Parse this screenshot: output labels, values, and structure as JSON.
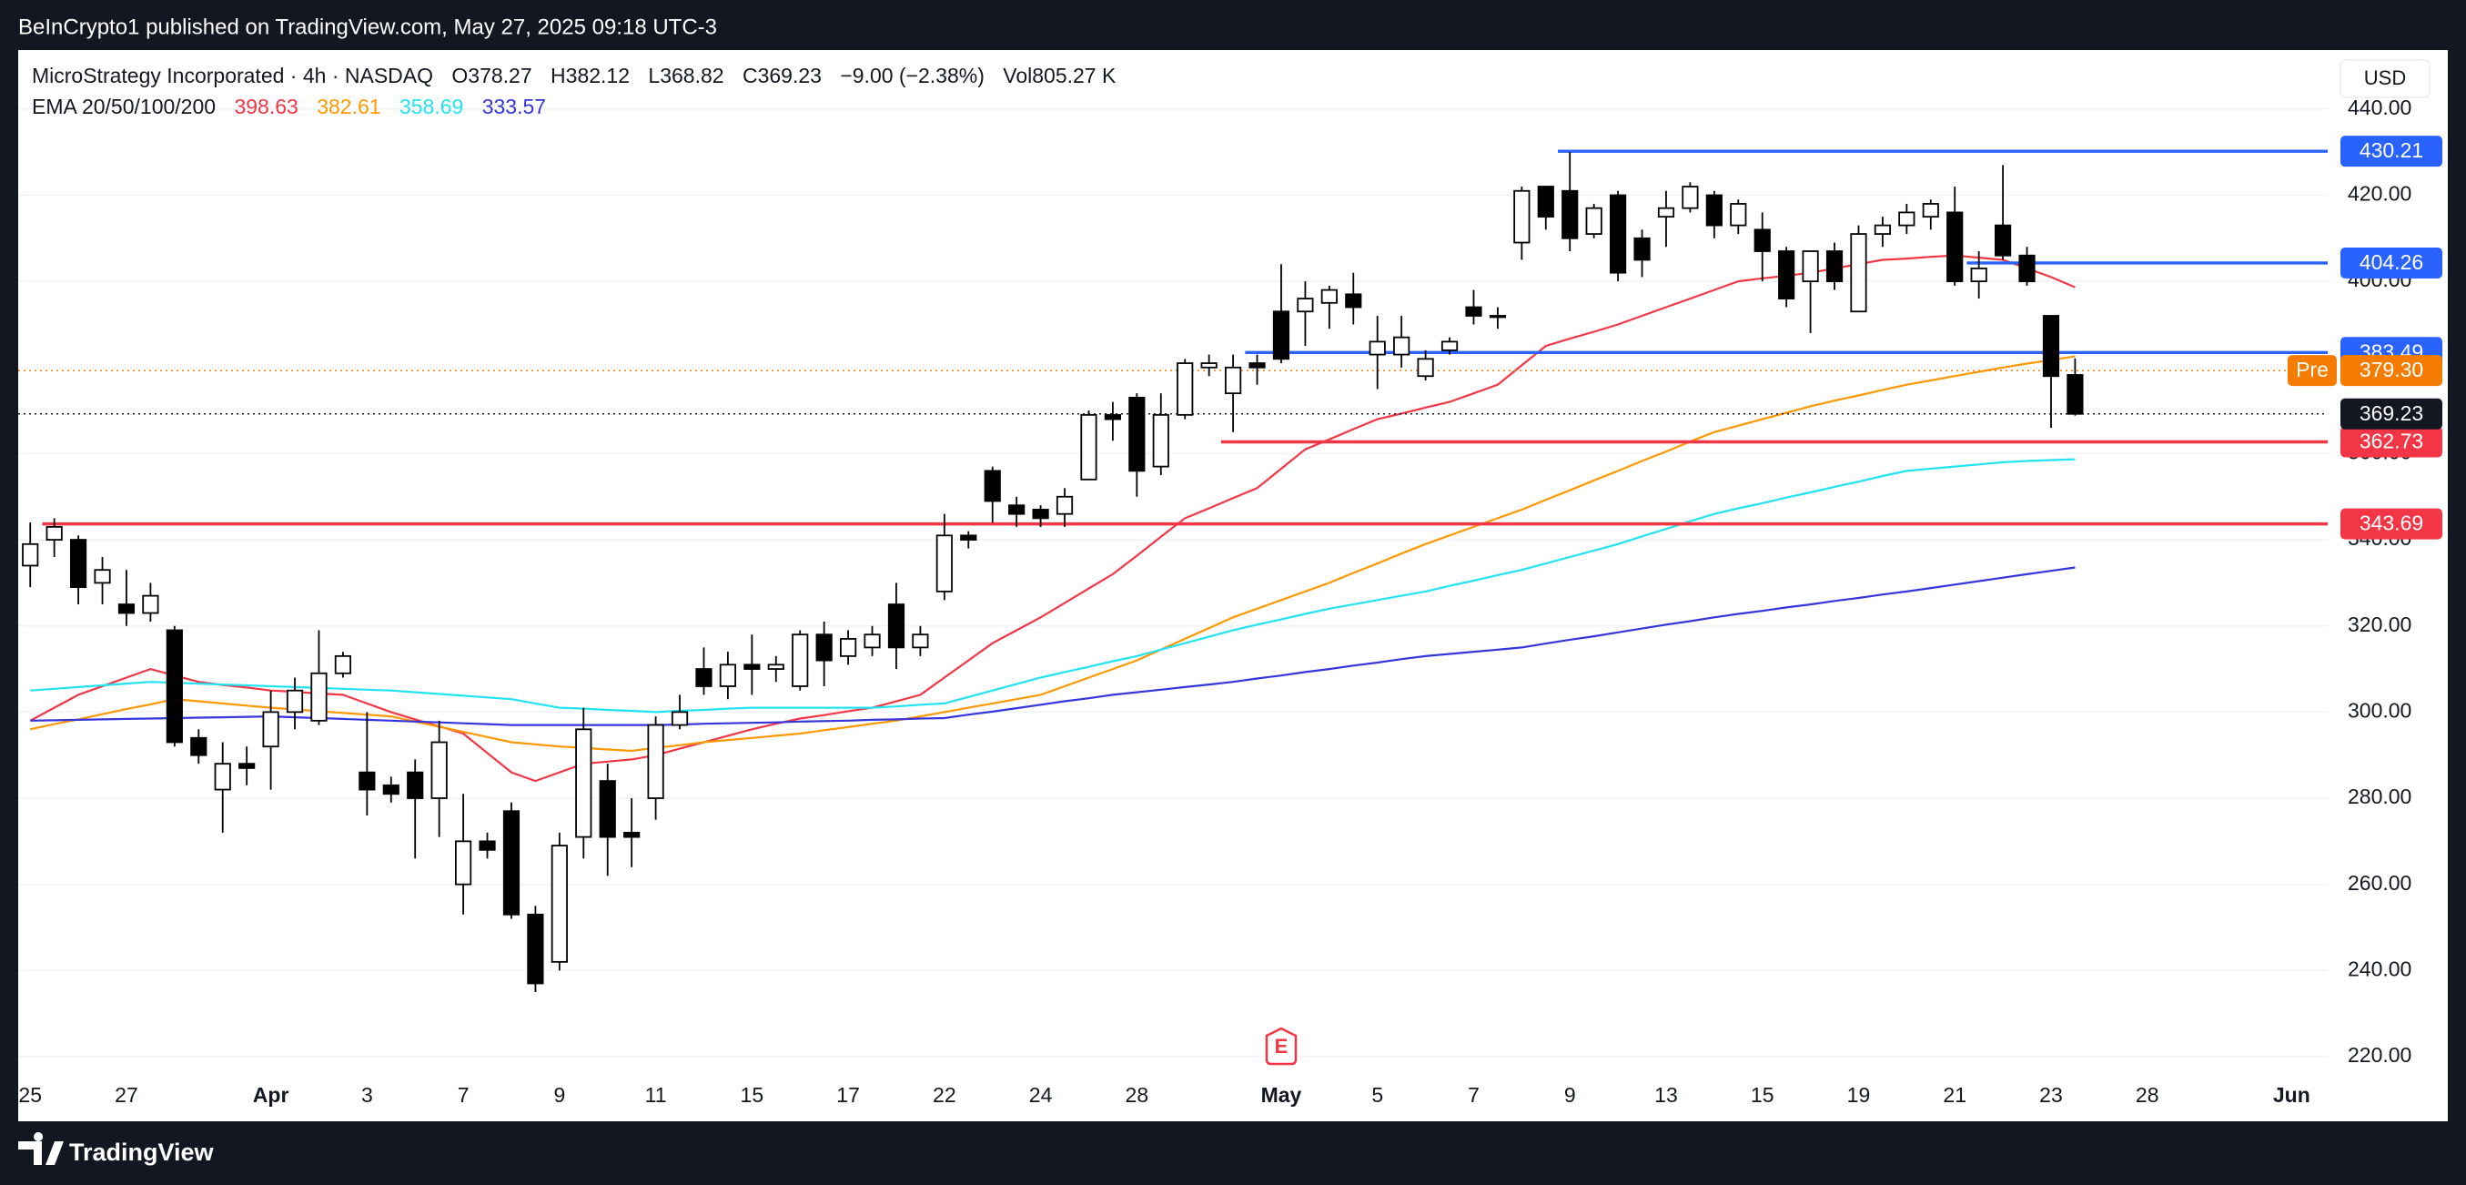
{
  "header": {
    "publisher": "BeInCrypto1 published on TradingView.com, May 27, 2025 09:18 UTC-3"
  },
  "footer": {
    "brand": "TradingView"
  },
  "chart_data": {
    "type": "candlestick",
    "title": "MicroStrategy Incorporated · 4h · NASDAQ",
    "ohlc_labels": [
      "O",
      "H",
      "L",
      "C"
    ],
    "change": "−9.00 (−2.38%)",
    "volume": "Vol805.27 K",
    "currency": "USD",
    "categories": [
      "25",
      null,
      null,
      null,
      "27",
      null,
      null,
      null,
      null,
      null,
      "Apr",
      null,
      null,
      null,
      "3",
      null,
      null,
      null,
      "7",
      null,
      null,
      null,
      "9",
      null,
      null,
      null,
      "11",
      null,
      null,
      null,
      "15",
      null,
      null,
      null,
      "17",
      null,
      null,
      null,
      "22",
      null,
      null,
      null,
      "24",
      null,
      null,
      null,
      "28",
      null,
      null,
      null,
      null,
      null,
      "May",
      null,
      null,
      null,
      "5",
      null,
      null,
      null,
      "7",
      null,
      null,
      null,
      "9",
      null,
      null,
      null,
      "13",
      null,
      null,
      null,
      "15",
      null,
      null,
      null,
      "19",
      null,
      null,
      null,
      "21",
      null,
      null,
      null,
      "23",
      null,
      null,
      null,
      "28",
      null,
      null,
      null,
      null,
      null,
      "Jun",
      null
    ],
    "candles": {
      "up_color": "#ffffff",
      "down_color": "#000000",
      "open": [
        334,
        340,
        340,
        330,
        325,
        323,
        319,
        294,
        282,
        288,
        292,
        300,
        298,
        309,
        286,
        283,
        286,
        280,
        260,
        270,
        277,
        253,
        242,
        271,
        284,
        272,
        280,
        297,
        310,
        306,
        311,
        310,
        306,
        318,
        313,
        315,
        325,
        315,
        328,
        341,
        356,
        348,
        347,
        346,
        354,
        369,
        373,
        357,
        369,
        380,
        374,
        381,
        393,
        393,
        395,
        397,
        383,
        383,
        378,
        384,
        394,
        392,
        409,
        422,
        421,
        411,
        420,
        410,
        415,
        417,
        420,
        413,
        412,
        407,
        400,
        407,
        393,
        411,
        413,
        415,
        416,
        400,
        413,
        406,
        392,
        378.27,
        null,
        null,
        null,
        null,
        null,
        null,
        null,
        null,
        null,
        null
      ],
      "high": [
        344,
        345,
        341,
        336,
        333,
        330,
        320,
        296,
        293,
        292,
        305,
        308,
        319,
        314,
        300,
        285,
        289,
        298,
        281,
        272,
        279,
        255,
        272,
        301,
        288,
        280,
        299,
        304,
        315,
        314,
        318,
        313,
        319,
        321,
        319,
        320,
        330,
        320,
        346,
        342,
        357,
        350,
        348,
        352,
        370,
        372,
        374,
        374,
        382,
        383,
        383,
        383,
        404,
        400,
        399,
        402,
        392,
        392,
        384,
        387,
        398,
        394,
        422,
        422,
        430,
        418,
        421,
        412,
        421,
        423,
        421,
        419,
        416,
        408,
        407,
        409,
        413,
        415,
        418,
        419,
        422,
        407,
        427,
        408,
        392,
        382.12,
        null,
        null,
        null,
        null,
        null,
        null,
        null,
        null,
        null,
        null
      ],
      "low": [
        329,
        336,
        325,
        325,
        320,
        321,
        292,
        288,
        272,
        283,
        282,
        296,
        297,
        308,
        276,
        279,
        266,
        271,
        253,
        266,
        252,
        235,
        240,
        266,
        262,
        264,
        275,
        296,
        304,
        303,
        304,
        307,
        305,
        306,
        311,
        313,
        310,
        313,
        326,
        338,
        344,
        343,
        343,
        343,
        354,
        363,
        350,
        355,
        368,
        378,
        365,
        376,
        381,
        385,
        389,
        390,
        375,
        380,
        377,
        383,
        390,
        389,
        405,
        412,
        407,
        410,
        400,
        401,
        408,
        416,
        410,
        411,
        400,
        394,
        388,
        398,
        393,
        408,
        411,
        412,
        399,
        396,
        405,
        399,
        366,
        368.82,
        null,
        null,
        null,
        null,
        null,
        null,
        null,
        null,
        null,
        null
      ],
      "close": [
        339,
        343,
        329,
        333,
        323,
        327,
        293,
        290,
        288,
        287,
        300,
        305,
        309,
        313,
        282,
        281,
        280,
        293,
        270,
        268,
        253,
        237,
        269,
        296,
        271,
        271,
        297,
        300,
        306,
        311,
        310,
        311,
        318,
        312,
        317,
        318,
        315,
        318,
        341,
        340,
        349,
        346,
        345,
        350,
        369,
        368,
        356,
        369,
        381,
        381,
        380,
        380,
        382,
        396,
        398,
        394,
        386,
        387,
        382,
        386,
        392,
        392,
        421,
        415,
        410,
        417,
        402,
        405,
        417,
        422,
        413,
        418,
        407,
        396,
        407,
        400,
        411,
        413,
        416,
        418,
        400,
        403,
        406,
        400,
        378,
        369.23,
        null,
        null,
        null,
        null,
        null,
        null,
        null,
        null,
        null,
        null
      ]
    },
    "ema": {
      "label": "EMA 20/50/100/200",
      "series": [
        {
          "color": "#f23645",
          "values": [
            298,
            301,
            304,
            306,
            308,
            310,
            308.5,
            307,
            306.3,
            305.7,
            305,
            304.7,
            304.3,
            304,
            302,
            300,
            298.3,
            296.7,
            295,
            290.5,
            286,
            284,
            286,
            288,
            288.5,
            289,
            290,
            291.5,
            293,
            294.5,
            296,
            297.3,
            298.5,
            299.3,
            300.2,
            301,
            302.5,
            304,
            308,
            312,
            316,
            319,
            322,
            325.3,
            328.7,
            332,
            336.3,
            340.7,
            345,
            347.3,
            349.7,
            352,
            356.5,
            361,
            363.3,
            365.7,
            368,
            369.3,
            370.7,
            372,
            374,
            376,
            380.5,
            385,
            386.7,
            388.3,
            390,
            392,
            394,
            396,
            398,
            400,
            400.7,
            401.3,
            402,
            403,
            404,
            405,
            405.3,
            405.7,
            406,
            405.5,
            405,
            403,
            401,
            398.63,
            null,
            null,
            null,
            null,
            null,
            null,
            null,
            null,
            null,
            null
          ]
        },
        {
          "color": "#ff9800",
          "values": [
            296,
            297.2,
            298.3,
            299.5,
            300.7,
            301.8,
            303,
            302.5,
            302,
            301.5,
            301,
            300.6,
            300.2,
            299.8,
            299.4,
            299,
            297.8,
            296.6,
            295.4,
            294.2,
            293,
            292.5,
            292,
            291.7,
            291.3,
            291,
            291.7,
            292.3,
            293,
            293.5,
            294,
            294.5,
            295,
            295.8,
            296.5,
            297.3,
            298,
            299,
            300,
            301,
            302,
            303,
            304,
            306,
            308,
            310,
            312,
            314.5,
            317,
            319.5,
            322,
            324,
            326,
            328,
            330,
            332.3,
            334.5,
            336.8,
            339,
            341,
            343,
            345,
            347,
            349.3,
            351.5,
            353.8,
            356,
            358.3,
            360.5,
            362.8,
            365,
            366.5,
            368,
            369.5,
            371,
            372.3,
            373.5,
            374.8,
            376,
            377,
            378,
            379,
            380,
            380.9,
            381.7,
            382.61,
            null,
            null,
            null,
            null,
            null,
            null,
            null,
            null,
            null,
            null
          ]
        },
        {
          "color": "#22e3f2",
          "values": [
            305,
            305.4,
            305.8,
            306.2,
            306.6,
            307,
            306.8,
            306.6,
            306.4,
            306.2,
            306,
            305.8,
            305.6,
            305.4,
            305.2,
            305,
            304.6,
            304.2,
            303.8,
            303.4,
            303,
            302,
            301,
            300.8,
            300.5,
            300.3,
            300,
            300.3,
            300.5,
            300.8,
            301,
            301,
            301,
            301,
            301,
            301,
            301.3,
            301.7,
            302,
            303.5,
            305,
            306.5,
            308,
            309.3,
            310.5,
            311.8,
            313,
            314.5,
            316,
            317.5,
            319,
            320.3,
            321.5,
            322.8,
            324,
            325,
            326,
            327,
            328,
            329.3,
            330.5,
            331.8,
            333,
            334.5,
            336,
            337.5,
            339,
            340.8,
            342.5,
            344.3,
            346,
            347.3,
            348.5,
            349.8,
            351,
            352.3,
            353.5,
            354.8,
            356,
            356.5,
            357,
            357.5,
            358,
            358.3,
            358.5,
            358.69,
            null,
            null,
            null,
            null,
            null,
            null,
            null,
            null,
            null,
            null
          ]
        },
        {
          "color": "#3535dc",
          "values": [
            298,
            298.1,
            298.2,
            298.3,
            298.4,
            298.5,
            298.6,
            298.7,
            298.8,
            298.9,
            299,
            298.8,
            298.6,
            298.4,
            298.2,
            298,
            297.8,
            297.6,
            297.4,
            297.2,
            297,
            297,
            297,
            297,
            297,
            297,
            297,
            297.1,
            297.3,
            297.4,
            297.5,
            297.6,
            297.8,
            297.9,
            298,
            298.2,
            298.3,
            298.5,
            298.6,
            299.4,
            300.1,
            300.9,
            301.7,
            302.5,
            303.2,
            304,
            304.6,
            305.2,
            305.8,
            306.4,
            307,
            307.8,
            308.5,
            309.3,
            310,
            310.8,
            311.5,
            312.3,
            313,
            313.5,
            314,
            314.5,
            315,
            315.9,
            316.8,
            317.6,
            318.5,
            319.4,
            320.3,
            321.1,
            322,
            322.8,
            323.5,
            324.3,
            325,
            325.8,
            326.5,
            327.3,
            328,
            328.8,
            329.6,
            330.4,
            331.2,
            332,
            332.8,
            333.57,
            null,
            null,
            null,
            null,
            null,
            null,
            null,
            null,
            null,
            null
          ]
        }
      ]
    },
    "levels": [
      {
        "value": 430.21,
        "color": "#2962ff",
        "start": 64
      },
      {
        "value": 404.26,
        "color": "#2962ff",
        "start": 81
      },
      {
        "value": 383.49,
        "color": "#2962ff",
        "start": 51
      },
      {
        "value": 362.73,
        "color": "#f23645",
        "start": 50
      },
      {
        "value": 343.69,
        "color": "#f23645",
        "start": 1
      }
    ],
    "pre_market": {
      "label": "Pre",
      "value": 379.3,
      "value_label": "379.30",
      "color": "#f57c00"
    },
    "events": [
      {
        "label": "E",
        "at": 52,
        "color": "#f23645"
      }
    ],
    "ylim": [
      214.5,
      453.7
    ],
    "yticks": [
      {
        "value": 220,
        "label": "220.00"
      },
      {
        "value": 240,
        "label": "240.00"
      },
      {
        "value": 260,
        "label": "260.00"
      },
      {
        "value": 280,
        "label": "280.00"
      },
      {
        "value": 300,
        "label": "300.00"
      },
      {
        "value": 320,
        "label": "320.00"
      },
      {
        "value": 340,
        "label": "340.00"
      },
      {
        "value": 360,
        "label": "360.00"
      },
      {
        "value": 380,
        "label": "380.00"
      },
      {
        "value": 400,
        "label": "400.00"
      },
      {
        "value": 420,
        "label": "420.00"
      },
      {
        "value": 440,
        "label": "440.00"
      }
    ],
    "grid": true
  }
}
